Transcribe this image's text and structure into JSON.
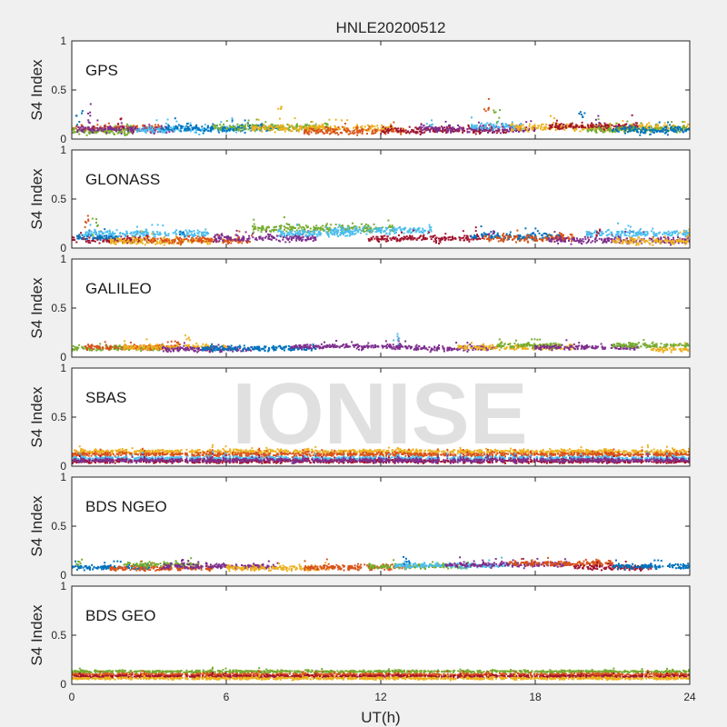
{
  "chart_data": {
    "type": "scatter",
    "title": "HNLE20200512",
    "xlabel": "UT(h)",
    "ylabel": "S4 Index",
    "xlim": [
      0,
      24
    ],
    "ylim": [
      0,
      1
    ],
    "xticks": [
      0,
      6,
      12,
      18,
      24
    ],
    "xtick_labels": [
      "0",
      "6",
      "12",
      "18",
      "24"
    ],
    "yticks": [
      0,
      0.5,
      1
    ],
    "ytick_labels": [
      "0",
      "0.5",
      "1"
    ],
    "grid": false,
    "watermark": "IONISE",
    "palette": [
      "#0072BD",
      "#D95319",
      "#EDB120",
      "#7E2F8E",
      "#77AC30",
      "#4DBEEE",
      "#A2142F"
    ],
    "panels": [
      {
        "label": "GPS",
        "baseline": 0.09,
        "spread": 0.035,
        "segments": [
          {
            "start": 0.0,
            "end": 3.5,
            "color": 1,
            "level": 0.11
          },
          {
            "start": 0.0,
            "end": 2.5,
            "color": 4,
            "level": 0.08
          },
          {
            "start": 0.2,
            "end": 4.0,
            "color": 3,
            "level": 0.1
          },
          {
            "start": 2.5,
            "end": 6.5,
            "color": 5,
            "level": 0.1
          },
          {
            "start": 3.5,
            "end": 8.0,
            "color": 0,
            "level": 0.11
          },
          {
            "start": 5.5,
            "end": 10.0,
            "color": 4,
            "level": 0.12
          },
          {
            "start": 7.0,
            "end": 12.5,
            "color": 2,
            "level": 0.11
          },
          {
            "start": 9.0,
            "end": 13.0,
            "color": 1,
            "level": 0.08
          },
          {
            "start": 12.0,
            "end": 17.0,
            "color": 6,
            "level": 0.09
          },
          {
            "start": 13.5,
            "end": 18.0,
            "color": 3,
            "level": 0.1
          },
          {
            "start": 15.5,
            "end": 17.5,
            "color": 5,
            "level": 0.13
          },
          {
            "start": 17.0,
            "end": 24.0,
            "color": 2,
            "level": 0.12
          },
          {
            "start": 18.5,
            "end": 22.0,
            "color": 6,
            "level": 0.13
          },
          {
            "start": 20.0,
            "end": 24.0,
            "color": 4,
            "level": 0.1
          },
          {
            "start": 21.0,
            "end": 24.0,
            "color": 0,
            "level": 0.09
          }
        ],
        "spikes": [
          [
            0.3,
            0.3
          ],
          [
            0.7,
            0.36
          ],
          [
            1.9,
            0.22
          ],
          [
            8.1,
            0.33
          ],
          [
            13.9,
            0.2
          ],
          [
            16.1,
            0.42
          ],
          [
            16.5,
            0.3
          ],
          [
            19.8,
            0.3
          ],
          [
            20.4,
            0.24
          ]
        ]
      },
      {
        "label": "GLONASS",
        "baseline": 0.09,
        "spread": 0.035,
        "segments": [
          {
            "start": 0.0,
            "end": 3.0,
            "color": 6,
            "level": 0.09
          },
          {
            "start": 0.2,
            "end": 1.8,
            "color": 0,
            "level": 0.11
          },
          {
            "start": 0.5,
            "end": 5.3,
            "color": 5,
            "level": 0.15
          },
          {
            "start": 1.5,
            "end": 5.5,
            "color": 2,
            "level": 0.07
          },
          {
            "start": 3.0,
            "end": 7.0,
            "color": 1,
            "level": 0.08
          },
          {
            "start": 5.5,
            "end": 9.5,
            "color": 3,
            "level": 0.1
          },
          {
            "start": 7.0,
            "end": 12.5,
            "color": 4,
            "level": 0.2
          },
          {
            "start": 8.0,
            "end": 11.0,
            "color": 5,
            "level": 0.15
          },
          {
            "start": 10.0,
            "end": 14.0,
            "color": 5,
            "level": 0.18
          },
          {
            "start": 11.5,
            "end": 16.0,
            "color": 6,
            "level": 0.1
          },
          {
            "start": 15.5,
            "end": 19.0,
            "color": 0,
            "level": 0.12
          },
          {
            "start": 16.0,
            "end": 19.5,
            "color": 1,
            "level": 0.1
          },
          {
            "start": 18.5,
            "end": 24.0,
            "color": 3,
            "level": 0.08
          },
          {
            "start": 20.0,
            "end": 24.0,
            "color": 5,
            "level": 0.15
          },
          {
            "start": 21.0,
            "end": 24.0,
            "color": 2,
            "level": 0.07
          }
        ],
        "spikes": [
          [
            0.6,
            0.33
          ],
          [
            0.9,
            0.3
          ],
          [
            4.3,
            0.18
          ],
          [
            16.3,
            0.25
          ],
          [
            20.5,
            0.2
          ],
          [
            23.9,
            0.2
          ]
        ]
      },
      {
        "label": "GALILEO",
        "baseline": 0.09,
        "spread": 0.025,
        "segments": [
          {
            "start": 0.0,
            "end": 3.5,
            "color": 4,
            "level": 0.09
          },
          {
            "start": 0.5,
            "end": 4.0,
            "color": 1,
            "level": 0.1
          },
          {
            "start": 2.0,
            "end": 6.0,
            "color": 2,
            "level": 0.1
          },
          {
            "start": 3.5,
            "end": 7.0,
            "color": 3,
            "level": 0.08
          },
          {
            "start": 5.0,
            "end": 9.5,
            "color": 0,
            "level": 0.09
          },
          {
            "start": 8.5,
            "end": 13.0,
            "color": 3,
            "level": 0.11
          },
          {
            "start": 12.5,
            "end": 16.5,
            "color": 3,
            "level": 0.09
          },
          {
            "start": 15.0,
            "end": 19.5,
            "color": 2,
            "level": 0.1
          },
          {
            "start": 16.5,
            "end": 19.0,
            "color": 4,
            "level": 0.12
          },
          {
            "start": 18.0,
            "end": 22.0,
            "color": 3,
            "level": 0.1
          },
          {
            "start": 21.0,
            "end": 24.0,
            "color": 4,
            "level": 0.12
          },
          {
            "start": 22.5,
            "end": 24.0,
            "color": 2,
            "level": 0.08
          }
        ],
        "spikes": [
          [
            4.5,
            0.22
          ],
          [
            12.6,
            0.24
          ],
          [
            4.1,
            0.17
          ]
        ]
      },
      {
        "label": "SBAS",
        "baseline": 0.09,
        "spread": 0.02,
        "segments": [
          {
            "start": 0.0,
            "end": 24.0,
            "color": 2,
            "level": 0.15
          },
          {
            "start": 0.0,
            "end": 24.0,
            "color": 1,
            "level": 0.12
          },
          {
            "start": 0.0,
            "end": 24.0,
            "color": 5,
            "level": 0.08
          },
          {
            "start": 0.0,
            "end": 24.0,
            "color": 6,
            "level": 0.05
          },
          {
            "start": 0.0,
            "end": 24.0,
            "color": 3,
            "level": 0.06
          }
        ],
        "spikes": []
      },
      {
        "label": "BDS NGEO",
        "baseline": 0.08,
        "spread": 0.025,
        "segments": [
          {
            "start": 0.0,
            "end": 3.0,
            "color": 0,
            "level": 0.08
          },
          {
            "start": 1.5,
            "end": 5.5,
            "color": 1,
            "level": 0.07
          },
          {
            "start": 2.0,
            "end": 5.0,
            "color": 4,
            "level": 0.11
          },
          {
            "start": 3.5,
            "end": 8.0,
            "color": 3,
            "level": 0.09
          },
          {
            "start": 6.0,
            "end": 10.0,
            "color": 2,
            "level": 0.07
          },
          {
            "start": 9.0,
            "end": 13.0,
            "color": 1,
            "level": 0.08
          },
          {
            "start": 11.5,
            "end": 15.5,
            "color": 4,
            "level": 0.09
          },
          {
            "start": 12.5,
            "end": 17.0,
            "color": 5,
            "level": 0.1
          },
          {
            "start": 14.5,
            "end": 19.5,
            "color": 3,
            "level": 0.11
          },
          {
            "start": 17.0,
            "end": 21.0,
            "color": 1,
            "level": 0.12
          },
          {
            "start": 19.5,
            "end": 22.5,
            "color": 6,
            "level": 0.08
          },
          {
            "start": 21.0,
            "end": 24.0,
            "color": 0,
            "level": 0.09
          }
        ],
        "spikes": [
          [
            0.3,
            0.17
          ],
          [
            13.0,
            0.22
          ],
          [
            4.3,
            0.16
          ]
        ]
      },
      {
        "label": "BDS GEO",
        "baseline": 0.09,
        "spread": 0.012,
        "segments": [
          {
            "start": 0.0,
            "end": 24.0,
            "color": 4,
            "level": 0.13
          },
          {
            "start": 0.0,
            "end": 24.0,
            "color": 1,
            "level": 0.1
          },
          {
            "start": 0.0,
            "end": 24.0,
            "color": 6,
            "level": 0.08
          },
          {
            "start": 0.0,
            "end": 24.0,
            "color": 2,
            "level": 0.06
          }
        ],
        "spikes": []
      }
    ]
  }
}
